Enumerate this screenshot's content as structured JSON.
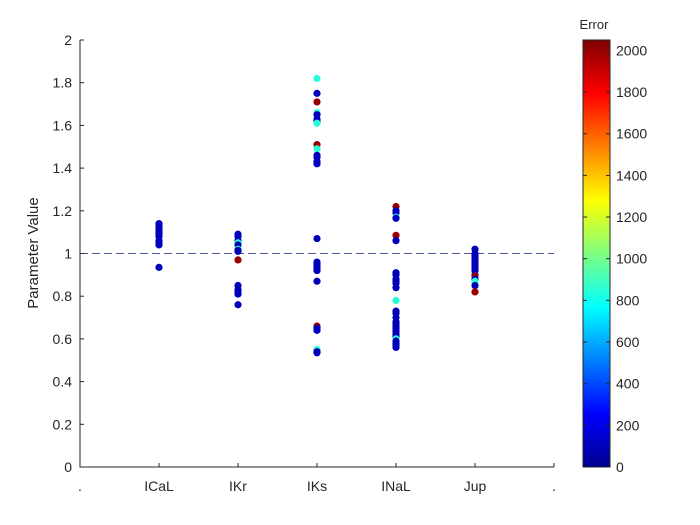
{
  "chart_data": {
    "type": "scatter",
    "ylabel": "Parameter Value",
    "colorbar_label": "Error",
    "colorbar_range": [
      0,
      2050
    ],
    "colorbar_ticks": [
      0,
      200,
      400,
      600,
      800,
      1000,
      1200,
      1400,
      1600,
      1800,
      2000
    ],
    "x_tick_labels": [
      ".",
      "ICaL",
      "IKr",
      "IKs",
      "INaL",
      "Jup",
      "."
    ],
    "xlim": [
      0,
      6
    ],
    "ylim": [
      0,
      2
    ],
    "y_ticks": [
      0,
      0.2,
      0.4,
      0.6,
      0.8,
      1,
      1.2,
      1.4,
      1.6,
      1.8,
      2
    ],
    "y_tick_labels": [
      "0",
      "0.2",
      "0.4",
      "0.6",
      "0.8",
      "1",
      "1.2",
      "1.4",
      "1.6",
      "1.8",
      "2"
    ],
    "reference_line": 1,
    "series": [
      {
        "category": "ICaL",
        "x": 1,
        "points": [
          [
            1.14,
            100
          ],
          [
            1.13,
            100
          ],
          [
            1.12,
            100
          ],
          [
            1.11,
            100
          ],
          [
            1.1,
            100
          ],
          [
            1.09,
            100
          ],
          [
            1.08,
            100
          ],
          [
            1.06,
            100
          ],
          [
            1.05,
            100
          ],
          [
            1.04,
            100
          ],
          [
            0.935,
            100
          ]
        ]
      },
      {
        "category": "IKr",
        "x": 2,
        "points": [
          [
            1.09,
            100
          ],
          [
            1.08,
            100
          ],
          [
            1.06,
            100
          ],
          [
            1.05,
            850
          ],
          [
            1.04,
            100
          ],
          [
            1.02,
            850
          ],
          [
            1.015,
            100
          ],
          [
            1.01,
            100
          ],
          [
            0.97,
            2000
          ],
          [
            0.85,
            100
          ],
          [
            0.83,
            100
          ],
          [
            0.82,
            100
          ],
          [
            0.81,
            100
          ],
          [
            0.76,
            100
          ]
        ]
      },
      {
        "category": "IKs",
        "x": 3,
        "points": [
          [
            1.82,
            850
          ],
          [
            1.75,
            100
          ],
          [
            1.71,
            2000
          ],
          [
            1.66,
            850
          ],
          [
            1.65,
            100
          ],
          [
            1.63,
            100
          ],
          [
            1.62,
            100
          ],
          [
            1.61,
            850
          ],
          [
            1.51,
            2000
          ],
          [
            1.49,
            850
          ],
          [
            1.46,
            100
          ],
          [
            1.45,
            100
          ],
          [
            1.43,
            100
          ],
          [
            1.42,
            100
          ],
          [
            1.07,
            100
          ],
          [
            0.96,
            100
          ],
          [
            0.95,
            100
          ],
          [
            0.94,
            100
          ],
          [
            0.93,
            100
          ],
          [
            0.92,
            100
          ],
          [
            0.87,
            100
          ],
          [
            0.66,
            2000
          ],
          [
            0.65,
            100
          ],
          [
            0.64,
            100
          ],
          [
            0.55,
            850
          ],
          [
            0.54,
            100
          ],
          [
            0.535,
            100
          ]
        ]
      },
      {
        "category": "INaL",
        "x": 4,
        "points": [
          [
            1.22,
            2000
          ],
          [
            1.2,
            100
          ],
          [
            1.19,
            100
          ],
          [
            1.17,
            850
          ],
          [
            1.165,
            100
          ],
          [
            1.085,
            2000
          ],
          [
            1.06,
            100
          ],
          [
            0.91,
            100
          ],
          [
            0.9,
            100
          ],
          [
            0.88,
            100
          ],
          [
            0.87,
            100
          ],
          [
            0.86,
            100
          ],
          [
            0.84,
            100
          ],
          [
            0.78,
            850
          ],
          [
            0.73,
            100
          ],
          [
            0.72,
            100
          ],
          [
            0.7,
            100
          ],
          [
            0.68,
            100
          ],
          [
            0.67,
            100
          ],
          [
            0.66,
            100
          ],
          [
            0.65,
            100
          ],
          [
            0.64,
            100
          ],
          [
            0.63,
            100
          ],
          [
            0.62,
            100
          ],
          [
            0.61,
            100
          ],
          [
            0.6,
            850
          ],
          [
            0.59,
            100
          ],
          [
            0.58,
            100
          ],
          [
            0.57,
            100
          ],
          [
            0.56,
            100
          ]
        ]
      },
      {
        "category": "Jup",
        "x": 5,
        "points": [
          [
            1.02,
            100
          ],
          [
            1.0,
            100
          ],
          [
            0.99,
            100
          ],
          [
            0.98,
            100
          ],
          [
            0.97,
            100
          ],
          [
            0.96,
            100
          ],
          [
            0.95,
            100
          ],
          [
            0.94,
            100
          ],
          [
            0.93,
            100
          ],
          [
            0.92,
            100
          ],
          [
            0.9,
            100
          ],
          [
            0.895,
            2000
          ],
          [
            0.88,
            100
          ],
          [
            0.87,
            850
          ],
          [
            0.86,
            850
          ],
          [
            0.85,
            100
          ],
          [
            0.82,
            2000
          ]
        ]
      }
    ]
  }
}
